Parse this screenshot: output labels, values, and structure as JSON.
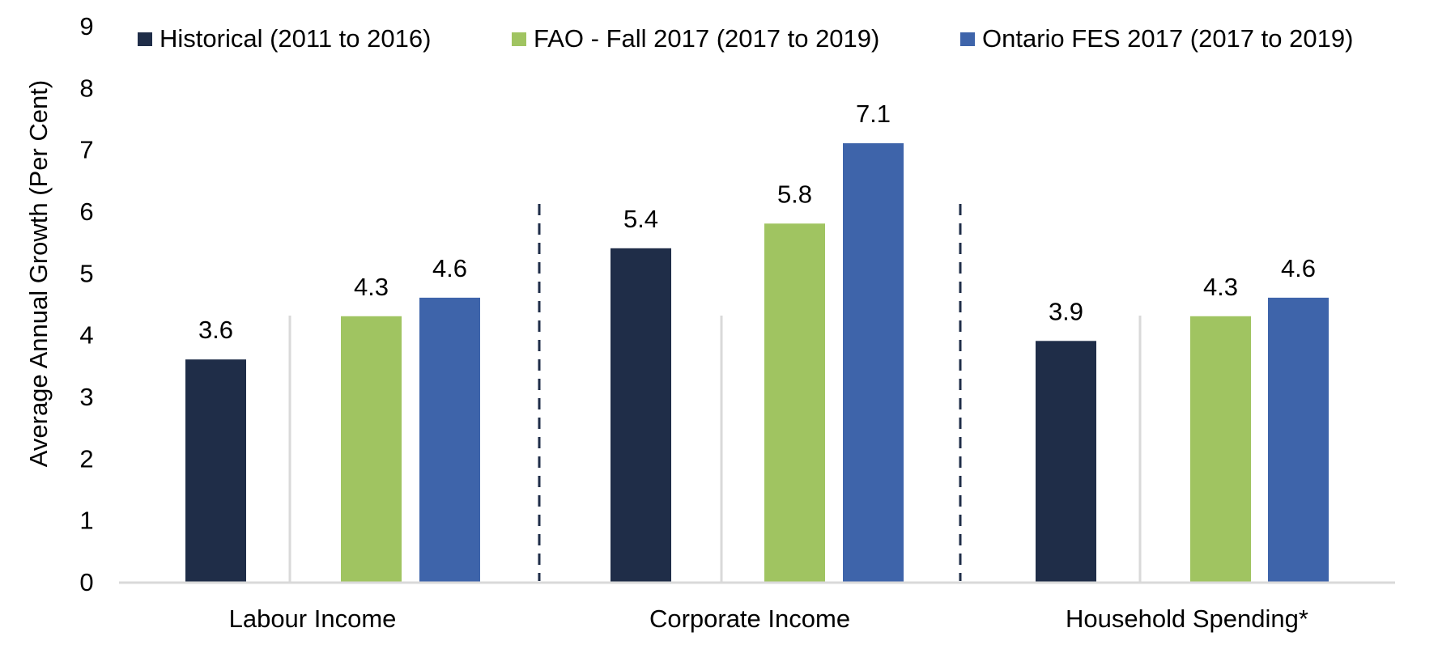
{
  "chart_data": {
    "type": "bar",
    "title": "",
    "xlabel": "",
    "ylabel": "Average Annual Growth (Per Cent)",
    "ylim": [
      0,
      9
    ],
    "yticks": [
      0,
      1,
      2,
      3,
      4,
      5,
      6,
      7,
      8,
      9
    ],
    "grid": false,
    "legend_position": "top",
    "categories": [
      "Labour Income",
      "Corporate Income",
      "Household Spending*"
    ],
    "series": [
      {
        "name": "Historical (2011 to 2016)",
        "color": "#1f2d48",
        "values": [
          3.6,
          5.4,
          3.9
        ],
        "labels": [
          "3.6",
          "5.4",
          "3.9"
        ]
      },
      {
        "name": "FAO - Fall 2017 (2017 to 2019)",
        "color": "#a0c461",
        "values": [
          4.3,
          5.8,
          4.3
        ],
        "labels": [
          "4.3",
          "5.8",
          "4.3"
        ]
      },
      {
        "name": "Ontario FES 2017 (2017 to 2019)",
        "color": "#3e64aa",
        "values": [
          4.6,
          7.1,
          4.6
        ],
        "labels": [
          "4.6",
          "7.1",
          "4.6"
        ]
      }
    ],
    "colors": {
      "axis": "#d9d9d9",
      "divider": "#d9d9d9",
      "dashed_separator": "#1f2d48",
      "text": "#000000"
    }
  }
}
